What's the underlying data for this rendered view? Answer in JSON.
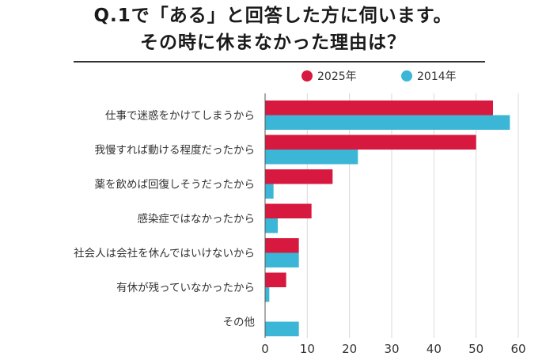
{
  "title_line1": "Q.1で「ある」と回答した方に伺います。",
  "title_line2": "その時に休まなかった理由は？",
  "chart_data": {
    "type": "bar",
    "orientation": "horizontal",
    "categories": [
      "仕事で迷惑をかけてしまうから",
      "我慢すれば動ける程度だったから",
      "薬を飲めば回復しそうだったから",
      "感染症ではなかったから",
      "社会人は会社を休んではいけないから",
      "有休が残っていなかったから",
      "その他"
    ],
    "series": [
      {
        "name": "2025年",
        "color": "#d7193f",
        "values": [
          54,
          50,
          16,
          11,
          8,
          5,
          0
        ]
      },
      {
        "name": "2014年",
        "color": "#3bb6d6",
        "values": [
          58,
          22,
          2,
          3,
          8,
          1,
          8
        ]
      }
    ],
    "xlim": [
      0,
      60
    ],
    "xticks": [
      0,
      10,
      20,
      30,
      40,
      50,
      60
    ],
    "grid": true,
    "legend_position": "top-right"
  }
}
